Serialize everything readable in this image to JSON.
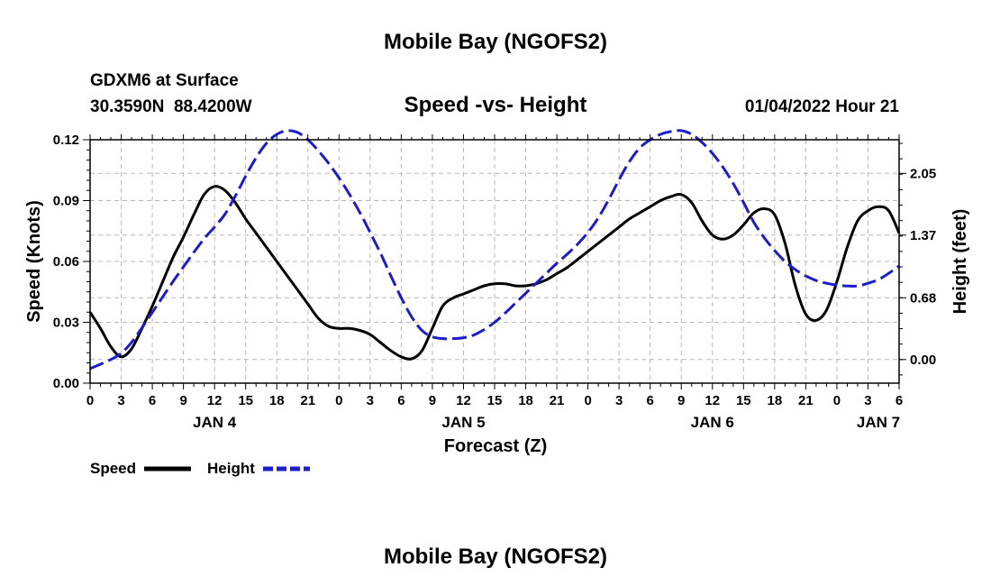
{
  "header": {
    "title": "Mobile Bay (NGOFS2)",
    "station": "GDXM6 at Surface",
    "coords": "30.3590N  88.4200W",
    "subtitle": "Speed -vs- Height",
    "datetime": "01/04/2022 Hour 21",
    "footer_title": "Mobile Bay (NGOFS2)"
  },
  "chart_data": {
    "type": "line",
    "title": "Speed -vs- Height",
    "xlabel": "Forecast (Z)",
    "ylabel": "Speed (Knots)",
    "y2label": "Height (feet)",
    "x_unit": "forecast hour from JAN 4 00Z",
    "xlim": [
      0,
      78
    ],
    "ylim": [
      0,
      0.12
    ],
    "y2lim": [
      -0.26,
      2.42
    ],
    "x_ticks": [
      0,
      3,
      6,
      9,
      12,
      15,
      18,
      21,
      24,
      27,
      30,
      33,
      36,
      39,
      42,
      45,
      48,
      51,
      54,
      57,
      60,
      63,
      66,
      69,
      72,
      75,
      78
    ],
    "x_tick_labels": [
      "0",
      "3",
      "6",
      "9",
      "12",
      "15",
      "18",
      "21",
      "0",
      "3",
      "6",
      "9",
      "12",
      "15",
      "18",
      "21",
      "0",
      "3",
      "6",
      "9",
      "12",
      "15",
      "18",
      "21",
      "0",
      "3",
      "6"
    ],
    "day_labels": [
      {
        "x": 12,
        "label": "JAN 4"
      },
      {
        "x": 36,
        "label": "JAN 5"
      },
      {
        "x": 60,
        "label": "JAN 6"
      },
      {
        "x": 76,
        "label": "JAN 7"
      }
    ],
    "y_ticks": [
      0,
      0.03,
      0.06,
      0.09,
      0.12
    ],
    "y_tick_labels": [
      "0.00",
      "0.03",
      "0.06",
      "0.09",
      "0.12"
    ],
    "y2_ticks": [
      0,
      0.68,
      1.37,
      2.05
    ],
    "y2_tick_labels": [
      "0.00",
      "0.68",
      "1.37",
      "2.05"
    ],
    "grid": true,
    "legend_position": "bottom-left",
    "series": [
      {
        "name": "Speed",
        "axis": "left",
        "color": "#000000",
        "style": "solid",
        "points": [
          [
            0,
            0.035
          ],
          [
            1,
            0.027
          ],
          [
            2,
            0.018
          ],
          [
            3,
            0.013
          ],
          [
            4,
            0.017
          ],
          [
            5,
            0.027
          ],
          [
            6,
            0.038
          ],
          [
            7,
            0.05
          ],
          [
            8,
            0.062
          ],
          [
            9,
            0.072
          ],
          [
            10,
            0.083
          ],
          [
            11,
            0.093
          ],
          [
            12,
            0.097
          ],
          [
            13,
            0.095
          ],
          [
            14,
            0.089
          ],
          [
            15,
            0.081
          ],
          [
            16,
            0.074
          ],
          [
            17,
            0.067
          ],
          [
            18,
            0.06
          ],
          [
            19,
            0.053
          ],
          [
            20,
            0.046
          ],
          [
            21,
            0.039
          ],
          [
            22,
            0.032
          ],
          [
            23,
            0.028
          ],
          [
            24,
            0.027
          ],
          [
            25,
            0.027
          ],
          [
            26,
            0.026
          ],
          [
            27,
            0.024
          ],
          [
            28,
            0.02
          ],
          [
            29,
            0.016
          ],
          [
            30,
            0.013
          ],
          [
            31,
            0.012
          ],
          [
            32,
            0.016
          ],
          [
            33,
            0.027
          ],
          [
            34,
            0.038
          ],
          [
            35,
            0.042
          ],
          [
            36,
            0.044
          ],
          [
            37,
            0.046
          ],
          [
            38,
            0.048
          ],
          [
            39,
            0.049
          ],
          [
            40,
            0.049
          ],
          [
            41,
            0.048
          ],
          [
            42,
            0.048
          ],
          [
            43,
            0.049
          ],
          [
            44,
            0.051
          ],
          [
            45,
            0.054
          ],
          [
            46,
            0.057
          ],
          [
            47,
            0.061
          ],
          [
            48,
            0.065
          ],
          [
            49,
            0.069
          ],
          [
            50,
            0.073
          ],
          [
            51,
            0.077
          ],
          [
            52,
            0.081
          ],
          [
            53,
            0.084
          ],
          [
            54,
            0.087
          ],
          [
            55,
            0.09
          ],
          [
            56,
            0.092
          ],
          [
            57,
            0.093
          ],
          [
            58,
            0.089
          ],
          [
            59,
            0.08
          ],
          [
            60,
            0.073
          ],
          [
            61,
            0.071
          ],
          [
            62,
            0.073
          ],
          [
            63,
            0.078
          ],
          [
            64,
            0.084
          ],
          [
            65,
            0.086
          ],
          [
            66,
            0.083
          ],
          [
            67,
            0.069
          ],
          [
            68,
            0.048
          ],
          [
            69,
            0.034
          ],
          [
            70,
            0.031
          ],
          [
            71,
            0.036
          ],
          [
            72,
            0.05
          ],
          [
            73,
            0.067
          ],
          [
            74,
            0.08
          ],
          [
            75,
            0.085
          ],
          [
            76,
            0.087
          ],
          [
            77,
            0.085
          ],
          [
            78,
            0.074
          ]
        ]
      },
      {
        "name": "Height",
        "axis": "right",
        "color": "#1c1cc8",
        "style": "dashed",
        "points": [
          [
            0,
            -0.1
          ],
          [
            2,
            0.0
          ],
          [
            3,
            0.07
          ],
          [
            4,
            0.19
          ],
          [
            5,
            0.35
          ],
          [
            6,
            0.52
          ],
          [
            7,
            0.69
          ],
          [
            8,
            0.86
          ],
          [
            9,
            1.02
          ],
          [
            10,
            1.18
          ],
          [
            11,
            1.33
          ],
          [
            12,
            1.46
          ],
          [
            13,
            1.6
          ],
          [
            14,
            1.8
          ],
          [
            15,
            2.02
          ],
          [
            16,
            2.22
          ],
          [
            17,
            2.38
          ],
          [
            18,
            2.48
          ],
          [
            19,
            2.52
          ],
          [
            20,
            2.5
          ],
          [
            21,
            2.42
          ],
          [
            22,
            2.3
          ],
          [
            23,
            2.16
          ],
          [
            24,
            2.0
          ],
          [
            25,
            1.82
          ],
          [
            26,
            1.62
          ],
          [
            27,
            1.4
          ],
          [
            28,
            1.17
          ],
          [
            29,
            0.92
          ],
          [
            30,
            0.68
          ],
          [
            31,
            0.47
          ],
          [
            32,
            0.32
          ],
          [
            33,
            0.25
          ],
          [
            34,
            0.23
          ],
          [
            35,
            0.23
          ],
          [
            36,
            0.24
          ],
          [
            37,
            0.27
          ],
          [
            38,
            0.33
          ],
          [
            39,
            0.41
          ],
          [
            40,
            0.51
          ],
          [
            41,
            0.62
          ],
          [
            42,
            0.73
          ],
          [
            43,
            0.84
          ],
          [
            44,
            0.95
          ],
          [
            45,
            1.06
          ],
          [
            46,
            1.16
          ],
          [
            47,
            1.27
          ],
          [
            48,
            1.4
          ],
          [
            49,
            1.56
          ],
          [
            50,
            1.76
          ],
          [
            51,
            1.98
          ],
          [
            52,
            2.18
          ],
          [
            53,
            2.33
          ],
          [
            54,
            2.42
          ],
          [
            55,
            2.48
          ],
          [
            56,
            2.51
          ],
          [
            57,
            2.52
          ],
          [
            58,
            2.48
          ],
          [
            59,
            2.39
          ],
          [
            60,
            2.27
          ],
          [
            61,
            2.12
          ],
          [
            62,
            1.94
          ],
          [
            63,
            1.73
          ],
          [
            64,
            1.51
          ],
          [
            65,
            1.34
          ],
          [
            66,
            1.2
          ],
          [
            67,
            1.08
          ],
          [
            68,
            0.99
          ],
          [
            69,
            0.92
          ],
          [
            70,
            0.87
          ],
          [
            71,
            0.84
          ],
          [
            72,
            0.82
          ],
          [
            73,
            0.81
          ],
          [
            74,
            0.81
          ],
          [
            75,
            0.84
          ],
          [
            76,
            0.88
          ],
          [
            77,
            0.95
          ],
          [
            78,
            1.03
          ]
        ]
      }
    ]
  }
}
